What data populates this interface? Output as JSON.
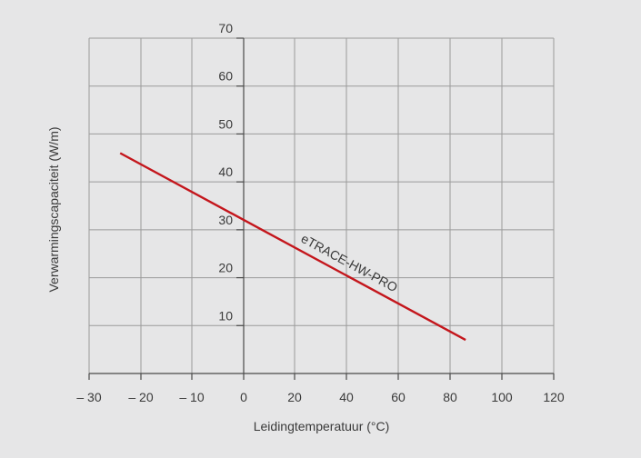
{
  "chart_data": {
    "type": "line",
    "xlabel": "Leidingtemperatuur (°C)",
    "ylabel": "Verwarmingscapaciteit (W/m)",
    "xlim": [
      -30,
      120
    ],
    "ylim": [
      0,
      70
    ],
    "x_ticks": [
      -30,
      -20,
      -10,
      0,
      20,
      40,
      60,
      80,
      100,
      120
    ],
    "x_tick_labels": [
      "– 30",
      "– 20",
      "– 10",
      "0",
      "20",
      "40",
      "60",
      "80",
      "100",
      "120"
    ],
    "y_ticks": [
      10,
      20,
      30,
      40,
      50,
      60,
      70
    ],
    "y_tick_labels": [
      "10",
      "20",
      "30",
      "40",
      "50",
      "60",
      "70"
    ],
    "grid": true,
    "series": [
      {
        "name": "eTRACE-HW-PRO",
        "color": "#c4161c",
        "x": [
          -24,
          86
        ],
        "y": [
          46,
          7
        ]
      }
    ]
  }
}
